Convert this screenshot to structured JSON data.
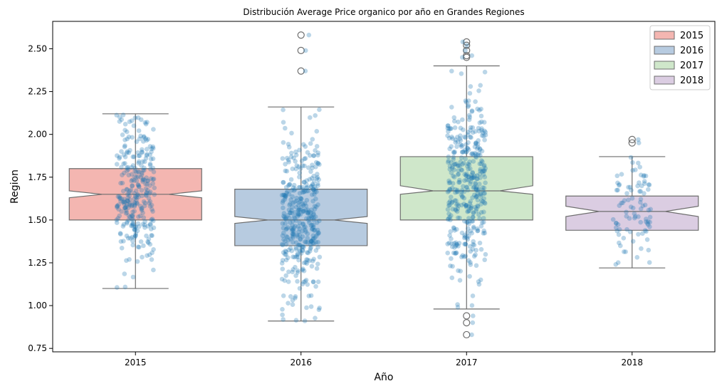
{
  "chart_data": {
    "type": "boxplot",
    "title": "Distribución Average Price organico por año en Grandes Regiones",
    "xlabel": "Año",
    "ylabel": "Region",
    "ylim": [
      0.73,
      2.66
    ],
    "yticks": [
      "0.75",
      "1.00",
      "1.25",
      "1.50",
      "1.75",
      "2.00",
      "2.25",
      "2.50"
    ],
    "categories": [
      "2015",
      "2016",
      "2017",
      "2018"
    ],
    "notched": true,
    "legend_position": "top-right",
    "legend": [
      "2015",
      "2016",
      "2017",
      "2018"
    ],
    "series": [
      {
        "name": "2015",
        "color": "#f4b6b1",
        "whisker_low": 1.1,
        "q1": 1.5,
        "median": 1.65,
        "q3": 1.8,
        "whisker_high": 2.12,
        "notch_low": 1.63,
        "notch_high": 1.67,
        "outliers": [],
        "n_points": 300
      },
      {
        "name": "2016",
        "color": "#b7cbe0",
        "whisker_low": 0.91,
        "q1": 1.35,
        "median": 1.5,
        "q3": 1.68,
        "whisker_high": 2.16,
        "notch_low": 1.48,
        "notch_high": 1.52,
        "outliers": [
          2.58,
          2.49,
          2.37
        ],
        "n_points": 380
      },
      {
        "name": "2017",
        "color": "#cfe7ca",
        "whisker_low": 0.98,
        "q1": 1.5,
        "median": 1.67,
        "q3": 1.87,
        "whisker_high": 2.4,
        "notch_low": 1.65,
        "notch_high": 1.7,
        "outliers": [
          2.54,
          2.52,
          2.49,
          2.46,
          2.45,
          0.94,
          0.9,
          0.83
        ],
        "n_points": 400
      },
      {
        "name": "2018",
        "color": "#dbcde2",
        "whisker_low": 1.22,
        "q1": 1.44,
        "median": 1.55,
        "q3": 1.64,
        "whisker_high": 1.87,
        "notch_low": 1.52,
        "notch_high": 1.58,
        "outliers": [
          1.97,
          1.95
        ],
        "n_points": 90
      }
    ],
    "strip_color": "#1f77b4"
  }
}
